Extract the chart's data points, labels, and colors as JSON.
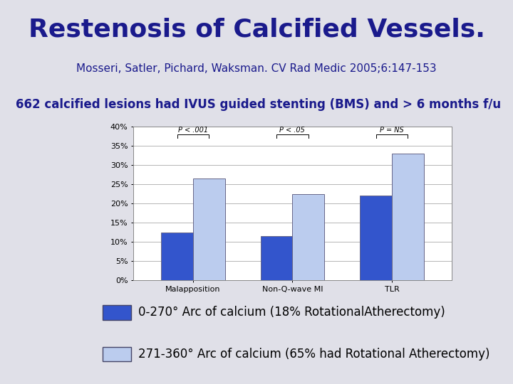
{
  "title": "Restenosis of Calcified Vessels.",
  "subtitle": "Mosseri, Satler, Pichard, Waksman. CV Rad Medic 2005;6:147-153",
  "subtitle2": "662 calcified lesions had IVUS guided stenting (BMS) and > 6 months f/u",
  "categories": [
    "Malapposition",
    "Non-Q-wave MI",
    "TLR"
  ],
  "series1_label": "0-270° Arc of calcium (18% RotationalAtherectomy)",
  "series2_label": "271-360° Arc of calcium (65% had Rotational Atherectomy)",
  "series1_values": [
    12.5,
    11.5,
    22.0
  ],
  "series2_values": [
    26.5,
    22.5,
    33.0
  ],
  "series1_color": "#3355CC",
  "series2_color": "#BBCCEE",
  "bar_edge_color": "#666688",
  "pvalues": [
    "P < .001",
    "P < .05",
    "P = NS"
  ],
  "ylim": [
    0,
    40
  ],
  "yticks": [
    0,
    5,
    10,
    15,
    20,
    25,
    30,
    35,
    40
  ],
  "yticklabels": [
    "0%",
    "5%",
    "10%",
    "15%",
    "20%",
    "25%",
    "30%",
    "35%",
    "40%"
  ],
  "page_bg_color": "#E0E0E8",
  "title_bg_color": "#D8D8E0",
  "subtitle2_bg_color": "#F0F0F8",
  "chart_bg_color": "#FFFFFF",
  "title_color": "#1a1a8c",
  "subtitle_color": "#1a1a8c",
  "subtitle2_color": "#1a1a8c",
  "title_fontsize": 26,
  "subtitle_fontsize": 11,
  "subtitle2_fontsize": 12,
  "legend_fontsize": 12
}
